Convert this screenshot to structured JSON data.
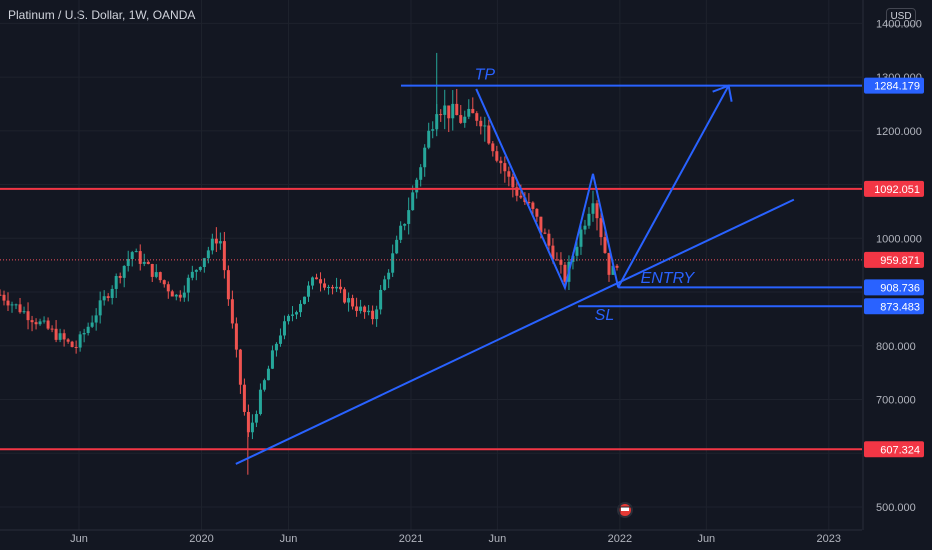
{
  "header": {
    "title": "Platinum / U.S. Dollar, 1W, OANDA",
    "currency_button": "USD"
  },
  "chart_data": {
    "type": "candlestick",
    "title": "Platinum / U.S. Dollar, 1W, OANDA",
    "y_axis": {
      "ticks": [
        500,
        600,
        700,
        800,
        900,
        1000,
        1100,
        1200,
        1300,
        1400
      ],
      "tick_labels": [
        "500.000",
        "",
        "700.000",
        "800.000",
        "",
        "1000.000",
        "",
        "1200.000",
        "1300.000",
        "1400.000"
      ],
      "range": [
        485,
        1410
      ]
    },
    "x_axis": {
      "tick_labels": [
        "Jun",
        "2020",
        "Jun",
        "2021",
        "Jun",
        "2022",
        "Jun",
        "2023"
      ],
      "tick_dates": [
        "2019-06-01",
        "2020-01-01",
        "2020-06-01",
        "2021-01-01",
        "2021-06-01",
        "2022-01-01",
        "2022-06-01",
        "2023-01-01"
      ],
      "range": [
        "2019-01-14",
        "2023-02-28"
      ]
    },
    "price_levels": [
      {
        "label": "1284.179",
        "value": 1284.179,
        "color": "#2962ff",
        "kind": "take-profit"
      },
      {
        "label": "1092.051",
        "value": 1092.051,
        "color": "#f23645",
        "kind": "resistance"
      },
      {
        "label": "959.871",
        "value": 959.871,
        "color": "#f23645",
        "kind": "last-price"
      },
      {
        "label": "908.736",
        "value": 908.736,
        "color": "#2962ff",
        "kind": "entry"
      },
      {
        "label": "873.483",
        "value": 873.483,
        "color": "#2962ff",
        "kind": "stop-loss"
      },
      {
        "label": "607.324",
        "value": 607.324,
        "color": "#f23645",
        "kind": "support"
      }
    ],
    "annotations": [
      {
        "text": "TP",
        "date": "2021-05-10",
        "price": 1296
      },
      {
        "text": "ENTRY",
        "date": "2022-03-25",
        "price": 917
      },
      {
        "text": "SL",
        "date": "2021-12-05",
        "price": 848
      }
    ],
    "trend_line": {
      "from": {
        "date": "2020-03-01",
        "price": 580
      },
      "to": {
        "date": "2022-11-01",
        "price": 1072
      }
    },
    "projection_arrow": {
      "from": {
        "date": "2021-12-29",
        "price": 908.7
      },
      "to": {
        "date": "2022-07-10",
        "price": 1284
      }
    },
    "pattern_line": [
      {
        "date": "2021-04-25",
        "price": 1278
      },
      {
        "date": "2021-09-27",
        "price": 908
      },
      {
        "date": "2021-11-15",
        "price": 1120
      },
      {
        "date": "2021-12-29",
        "price": 908.7
      }
    ],
    "anchors": [
      {
        "date": "2019-01-14",
        "price": 895
      },
      {
        "date": "2019-05-25",
        "price": 795
      },
      {
        "date": "2019-09-02",
        "price": 975
      },
      {
        "date": "2019-11-20",
        "price": 890
      },
      {
        "date": "2020-02-01",
        "price": 1010
      },
      {
        "date": "2020-03-22",
        "price": 630
      },
      {
        "date": "2020-05-15",
        "price": 820
      },
      {
        "date": "2020-07-20",
        "price": 930
      },
      {
        "date": "2020-10-25",
        "price": 850
      },
      {
        "date": "2021-01-01",
        "price": 1070
      },
      {
        "date": "2021-02-15",
        "price": 1250
      },
      {
        "date": "2021-04-01",
        "price": 1220
      },
      {
        "date": "2021-05-01",
        "price": 1230
      },
      {
        "date": "2021-06-25",
        "price": 1100
      },
      {
        "date": "2021-08-01",
        "price": 1050
      },
      {
        "date": "2021-09-27",
        "price": 925
      },
      {
        "date": "2021-11-15",
        "price": 1080
      },
      {
        "date": "2021-12-15",
        "price": 930
      },
      {
        "date": "2021-12-29",
        "price": 960
      }
    ],
    "grid": true
  }
}
